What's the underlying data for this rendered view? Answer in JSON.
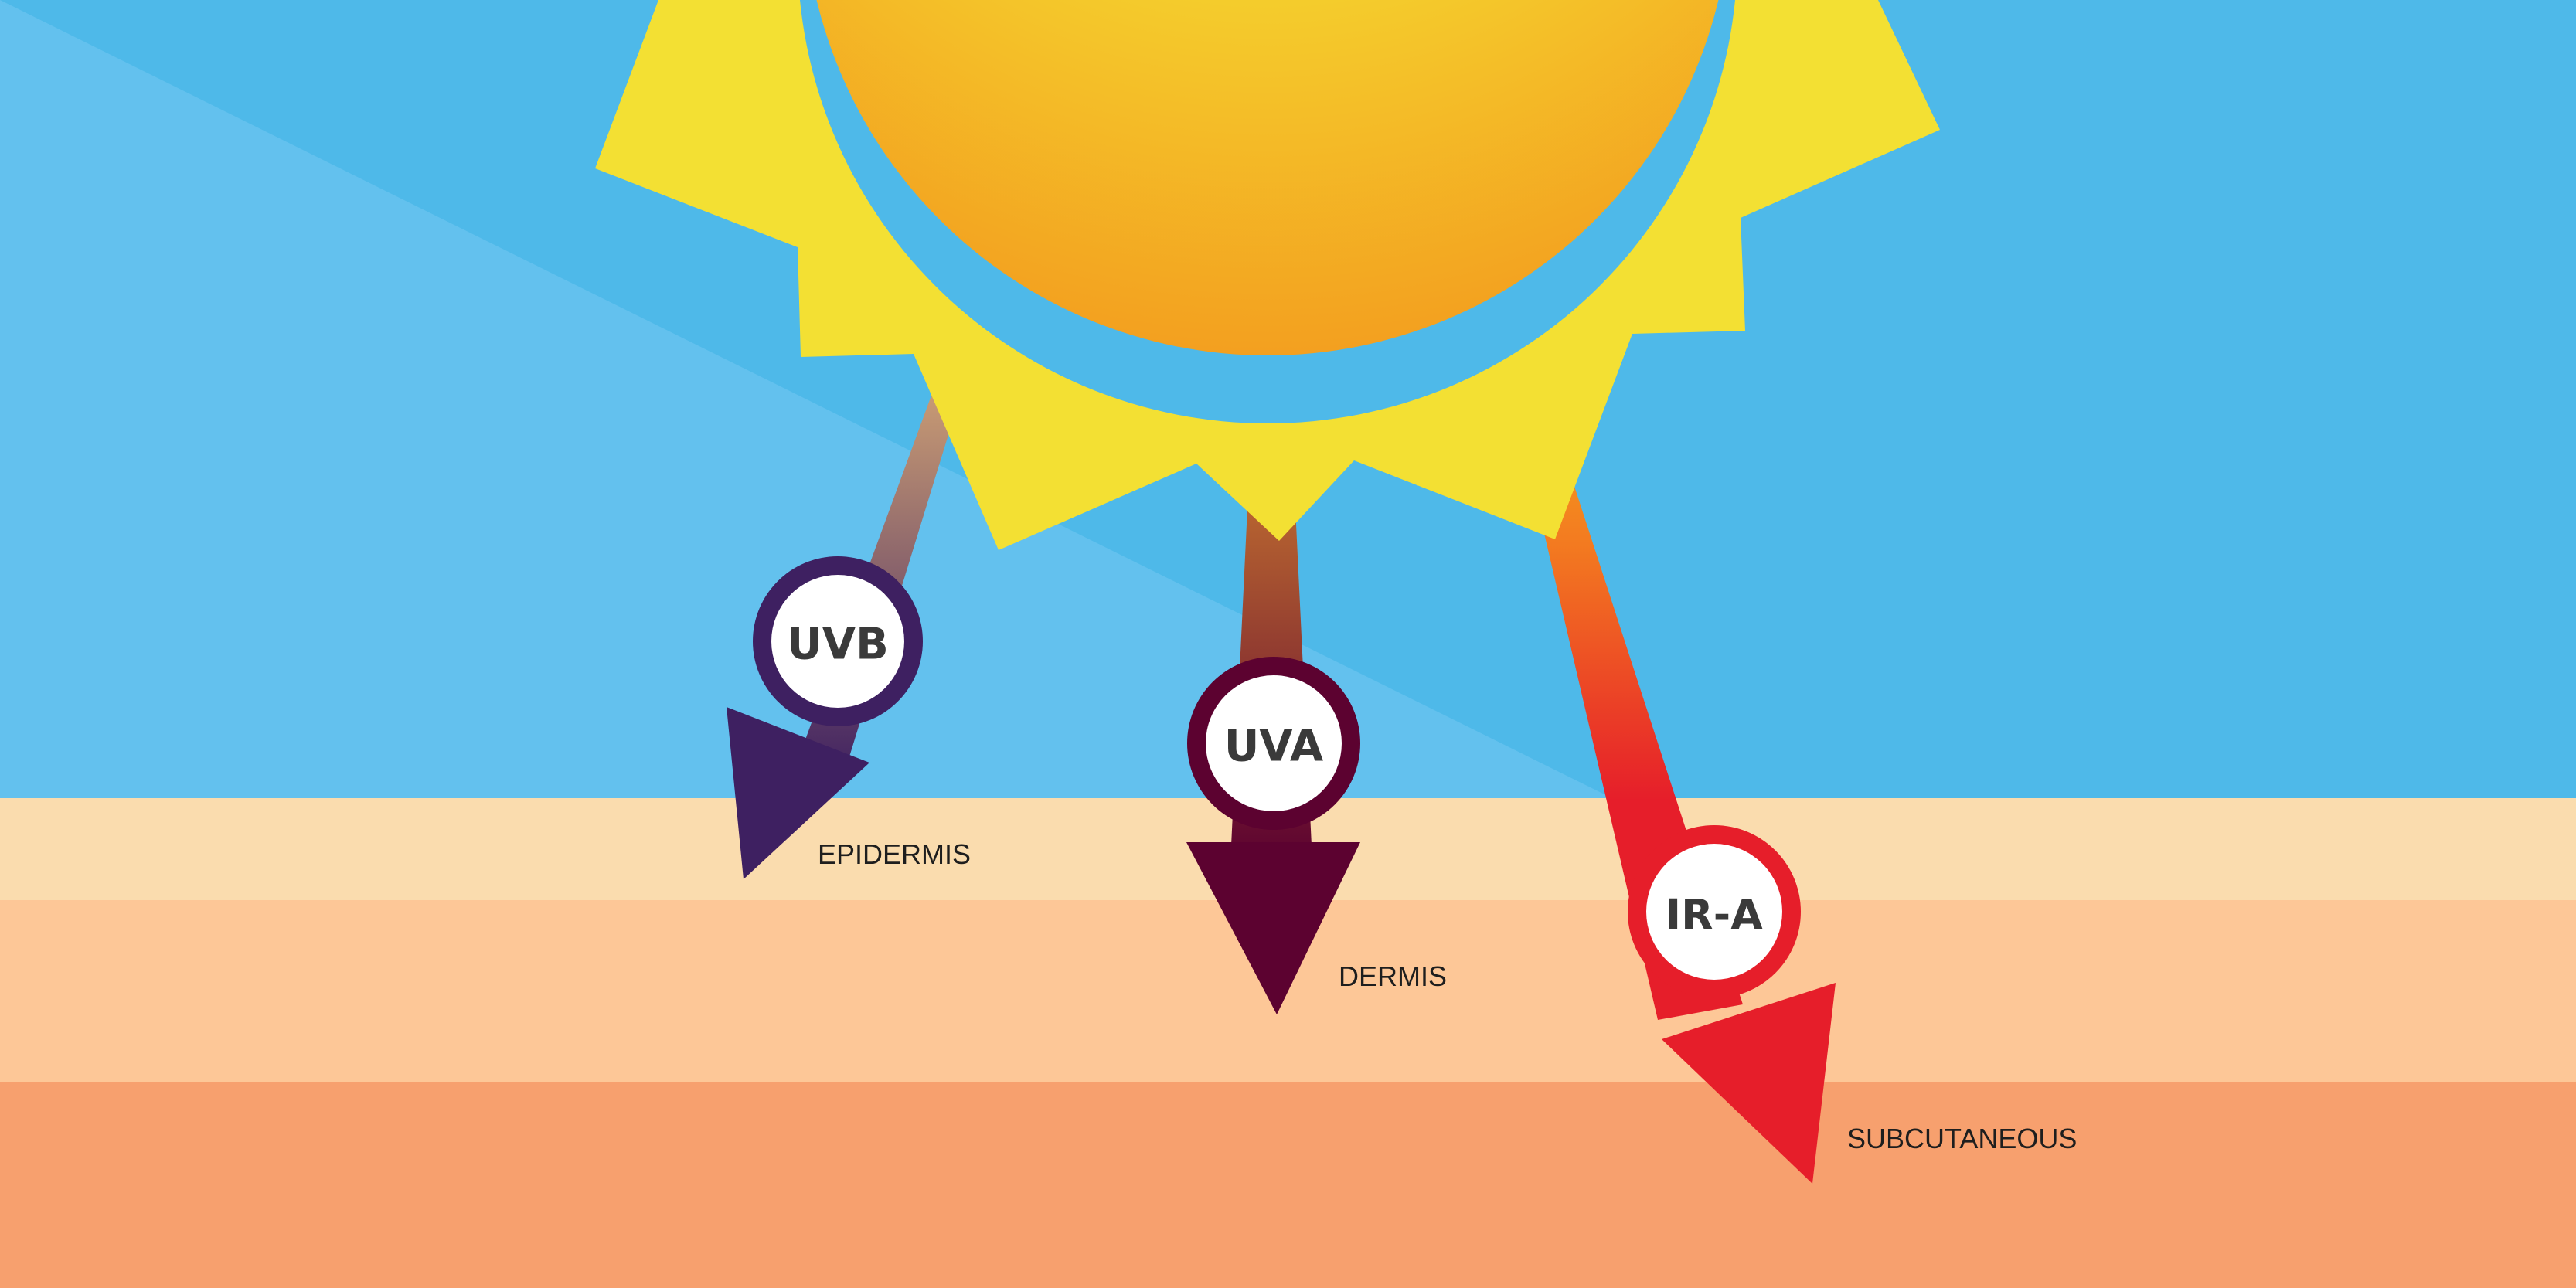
{
  "colors": {
    "sky": "#4eb9e9",
    "sky_light": "#63c1ee",
    "epidermis": "#fadcae",
    "dermis": "#fdc797",
    "subcutaneous": "#f7a06e",
    "sun_ray": "#f3e033",
    "uvb": "#3e2061",
    "uva": "#5c0230",
    "ira": "#e61e2a"
  },
  "rays": [
    {
      "id": "uvb",
      "label": "UVB"
    },
    {
      "id": "uva",
      "label": "UVA"
    },
    {
      "id": "ira",
      "label": "IR-A"
    }
  ],
  "layers": {
    "epidermis": "EPIDERMIS",
    "dermis": "DERMIS",
    "subcutaneous": "SUBCUTANEOUS"
  }
}
